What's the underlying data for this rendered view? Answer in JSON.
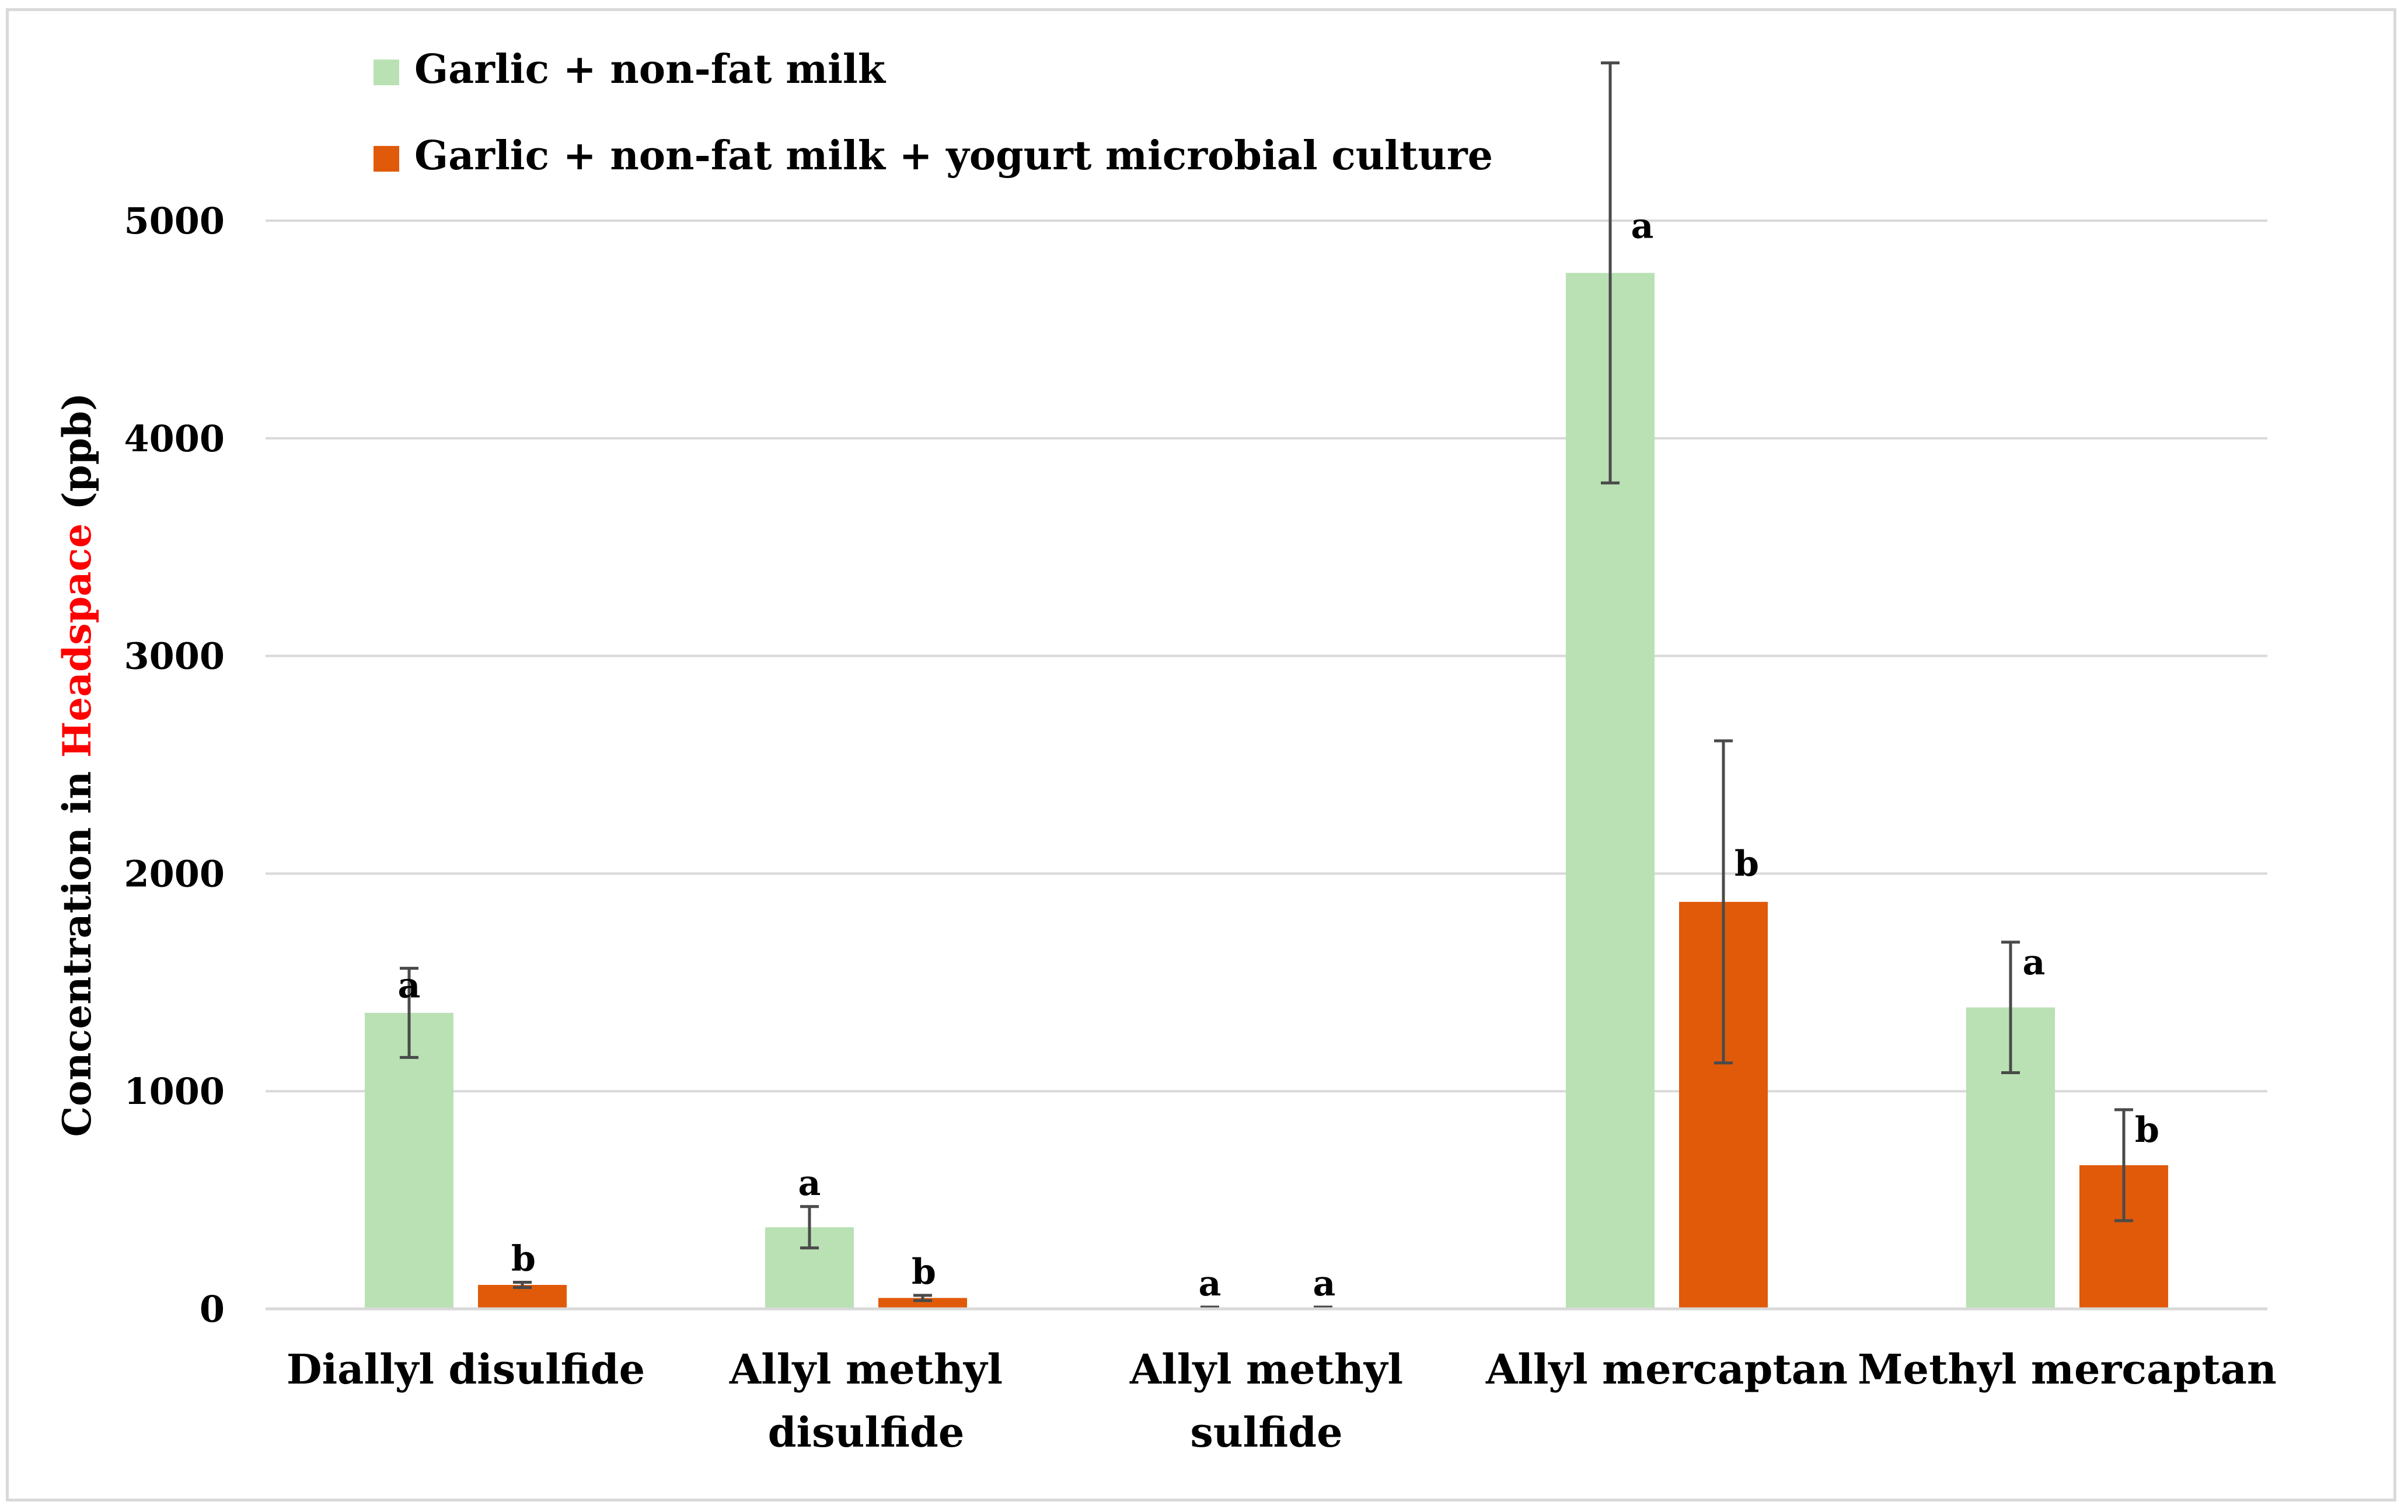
{
  "chart_data": {
    "type": "bar",
    "title": "",
    "xlabel": "",
    "ylabel": {
      "prefix": "Concentration in ",
      "highlight": "Headspace",
      "suffix": " (ppb)",
      "highlight_color": "#ff0000"
    },
    "ylim": [
      0,
      5000
    ],
    "yticks": [
      "0",
      "1000",
      "2000",
      "3000",
      "4000",
      "5000"
    ],
    "grid": true,
    "legend_position": "top-left",
    "categories": [
      [
        "Diallyl disulfide"
      ],
      [
        "Allyl methyl",
        "disulfide"
      ],
      [
        "Allyl methyl",
        "sulfide"
      ],
      [
        "Allyl mercaptan"
      ],
      [
        "Methyl mercaptan"
      ]
    ],
    "series": [
      {
        "name": "Garlic + non-fat milk",
        "color": "#b9e1b4",
        "values": [
          1360,
          375,
          5,
          4760,
          1385
        ],
        "error": [
          205,
          95,
          3,
          965,
          300
        ],
        "labels": [
          "a",
          "a",
          "a",
          "a",
          "a"
        ]
      },
      {
        "name": "Garlic + non-fat milk + yogurt microbial culture",
        "color": "#e05a0a",
        "values": [
          110,
          50,
          5,
          1870,
          660
        ],
        "error": [
          12,
          12,
          3,
          740,
          255
        ],
        "labels": [
          "b",
          "b",
          "a",
          "b",
          "b"
        ]
      }
    ],
    "error_bar_color": "#4a4a4a"
  }
}
